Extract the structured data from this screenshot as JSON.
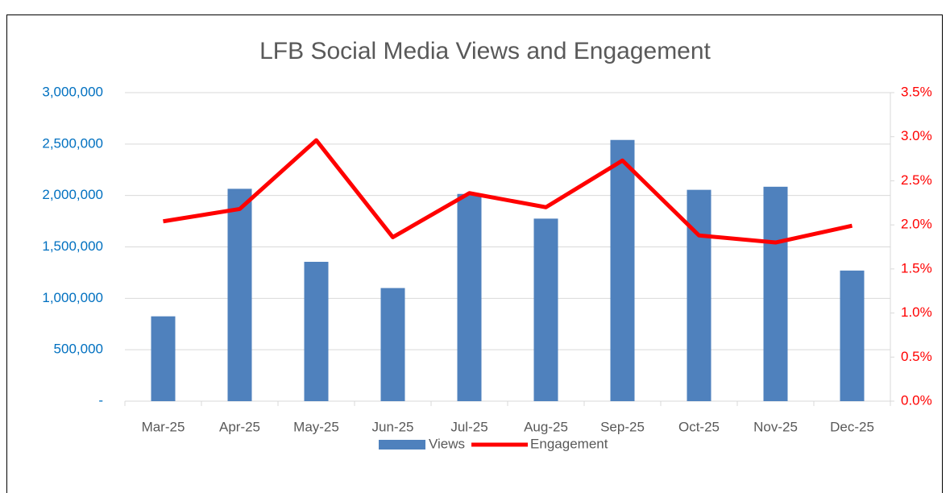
{
  "chart_data": {
    "type": "bar_line",
    "title": "LFB Social Media Views and Engagement",
    "categories": [
      "Mar-25",
      "Apr-25",
      "May-25",
      "Jun-25",
      "Jul-25",
      "Aug-25",
      "Sep-25",
      "Oct-25",
      "Nov-25",
      "Dec-25"
    ],
    "series": [
      {
        "name": "Views",
        "type": "bar",
        "color": "#4f81bd",
        "values": [
          825000,
          2065000,
          1355000,
          1100000,
          2015000,
          1775000,
          2540000,
          2055000,
          2085000,
          1270000
        ]
      },
      {
        "name": "Engagement",
        "type": "line",
        "axis": "y2",
        "color": "#ff0000",
        "values": [
          2.04,
          2.18,
          2.96,
          1.86,
          2.36,
          2.2,
          2.73,
          1.88,
          1.8,
          1.99
        ]
      }
    ],
    "ylim": [
      0,
      3000000
    ],
    "yticks": [
      {
        "value": 0,
        "label": "-"
      },
      {
        "value": 500000,
        "label": "500,000"
      },
      {
        "value": 1000000,
        "label": "1,000,000"
      },
      {
        "value": 1500000,
        "label": "1,500,000"
      },
      {
        "value": 2000000,
        "label": "2,000,000"
      },
      {
        "value": 2500000,
        "label": "2,500,000"
      },
      {
        "value": 3000000,
        "label": "3,000,000"
      }
    ],
    "y2lim": [
      0,
      3.5
    ],
    "y2ticks": [
      {
        "value": 0,
        "label": "0.0%"
      },
      {
        "value": 0.5,
        "label": "0.5%"
      },
      {
        "value": 1,
        "label": "1.0%"
      },
      {
        "value": 1.5,
        "label": "1.5%"
      },
      {
        "value": 2,
        "label": "2.0%"
      },
      {
        "value": 2.5,
        "label": "2.5%"
      },
      {
        "value": 3,
        "label": "3.0%"
      },
      {
        "value": 3.5,
        "label": "3.5%"
      }
    ],
    "ytick_color": "#0070c0",
    "y2tick_color": "#ff0000",
    "grid": true,
    "legend": "bottom"
  }
}
